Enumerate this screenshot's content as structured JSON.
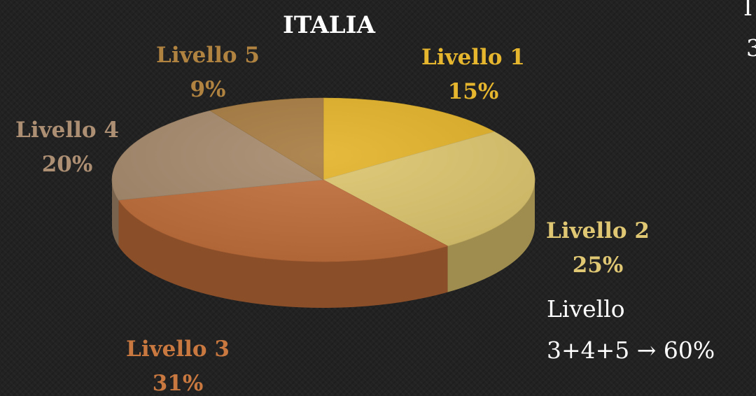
{
  "chart_data": {
    "type": "pie",
    "title": "ITALIA",
    "categories": [
      "Livello 1",
      "Livello 2",
      "Livello 3",
      "Livello 4",
      "Livello 5"
    ],
    "values": [
      15,
      25,
      31,
      20,
      9
    ],
    "labels": [
      "15%",
      "25%",
      "31%",
      "20%",
      "9%"
    ],
    "colors": [
      "#e3b227",
      "#dcc46c",
      "#c06d39",
      "#a68a6c",
      "#a67a3f"
    ],
    "label_colors": [
      "#e6b62e",
      "#dfc774",
      "#c9783f",
      "#ad8f74",
      "#b08340"
    ],
    "style": "3d-exploded-none"
  },
  "annotation": {
    "line1": "Livello",
    "line2": "3+4+5 → 60%"
  },
  "edge_text": {
    "top": "I",
    "second": "3"
  }
}
